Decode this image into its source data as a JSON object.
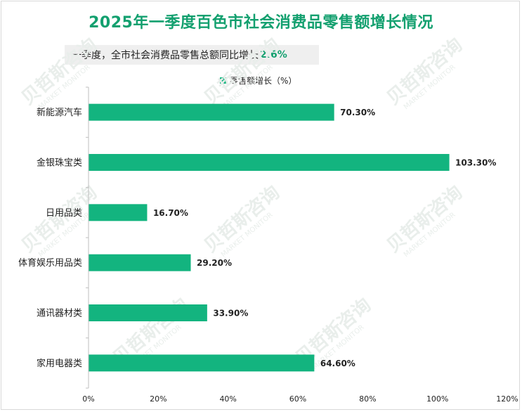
{
  "colors": {
    "title": "#13a06f",
    "bar": "#13b47f",
    "axis": "#bfbfbf",
    "watermark": "#e9eeeb"
  },
  "title": "2025年一季度百色市社会消费品零售额增长情况",
  "subtitle": {
    "text": "一季度，全市社会消费品零售总额同比增长",
    "value": "2.6%"
  },
  "watermark": {
    "cn": "贝哲斯咨询",
    "en": "MARKET MONITOR"
  },
  "chart_data": {
    "type": "bar",
    "orientation": "horizontal",
    "title": "2025年一季度百色市社会消费品零售额增长情况",
    "categories": [
      "新能源汽车",
      "金银珠宝类",
      "日用品类",
      "体育娱乐用品类",
      "通讯器材类",
      "家用电器类"
    ],
    "series": [
      {
        "name": "零售额增长（%）",
        "values": [
          70.3,
          103.3,
          16.7,
          29.2,
          33.9,
          64.6
        ]
      }
    ],
    "value_labels": [
      "70.30%",
      "103.30%",
      "16.70%",
      "29.20%",
      "33.90%",
      "64.60%"
    ],
    "xlim": [
      0,
      120
    ],
    "xticks": [
      0,
      20,
      40,
      60,
      80,
      100,
      120
    ],
    "xtick_labels": [
      "0%",
      "20%",
      "40%",
      "60%",
      "80%",
      "100%",
      "120%"
    ],
    "xlabel": "",
    "ylabel": "",
    "grid": false,
    "legend": "top-center"
  }
}
